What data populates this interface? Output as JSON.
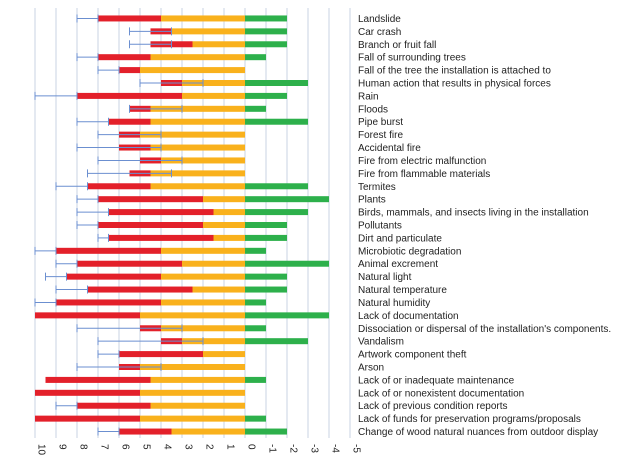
{
  "chart_data": {
    "type": "bar",
    "orientation": "horizontal-diverging",
    "xlim": [
      10,
      -5
    ],
    "x_ticks": [
      "10",
      "9",
      "8",
      "7",
      "6",
      "5",
      "4",
      "3",
      "2",
      "1",
      "0",
      "-1",
      "-2",
      "-3",
      "-4",
      "-5"
    ],
    "grid": "vertical",
    "legend": "none",
    "colors": {
      "red": "#e3202a",
      "orange": "#f9b11c",
      "green": "#2db04b",
      "error": "#6b8fd0"
    },
    "series_order": [
      "red",
      "orange",
      "green"
    ],
    "categories": [
      "Landslide",
      "Car crash",
      "Branch or fruit fall",
      "Fall of surrounding trees",
      "Fall of the tree the installation is attached to",
      "Human action that results in physical forces",
      "Rain",
      "Floods",
      "Pipe burst",
      "Forest fire",
      "Accidental fire",
      "Fire from electric malfunction",
      "Fire from flammable materials",
      "Termites",
      "Plants",
      "Birds, mammals, and insects living in the installation",
      "Pollutants",
      "Dirt and particulate",
      "Microbiotic degradation",
      "Animal excrement",
      "Natural light",
      "Natural temperature",
      "Natural humidity",
      "Lack of documentation",
      "Dissociation or dispersal of the installation's components.",
      "Vandalism",
      "Artwork component theft",
      "Arson",
      "Lack of or inadequate maintenance",
      "Lack of or nonexistent documentation",
      "Lack of previous condition reports",
      "Lack of funds for preservation programs/proposals",
      "Change of wood natural nuances from outdoor display"
    ],
    "bars": [
      {
        "red": 3.0,
        "orange": 4.0,
        "green": 2.0,
        "err_low": 8.0,
        "err_high": 7.0
      },
      {
        "red": 1.0,
        "orange": 3.5,
        "green": 2.0,
        "err_low": 5.5,
        "err_high": 3.5
      },
      {
        "red": 2.0,
        "orange": 2.5,
        "green": 2.0,
        "err_low": 5.5,
        "err_high": 3.5
      },
      {
        "red": 2.5,
        "orange": 4.5,
        "green": 1.0,
        "err_low": 8.0,
        "err_high": 7.0
      },
      {
        "red": 1.0,
        "orange": 5.0,
        "green": 0.0,
        "err_low": 7.0,
        "err_high": 6.0
      },
      {
        "red": 1.0,
        "orange": 3.0,
        "green": 3.0,
        "err_low": 5.0,
        "err_high": 2.0
      },
      {
        "red": 5.0,
        "orange": 3.0,
        "green": 2.0,
        "err_low": 10.0,
        "err_high": 8.0
      },
      {
        "red": 1.0,
        "orange": 4.5,
        "green": 1.0,
        "err_low": 5.5,
        "err_high": 3.0
      },
      {
        "red": 2.0,
        "orange": 4.5,
        "green": 3.0,
        "err_low": 8.0,
        "err_high": 6.5
      },
      {
        "red": 1.0,
        "orange": 5.0,
        "green": 0.0,
        "err_low": 7.0,
        "err_high": 4.0
      },
      {
        "red": 1.5,
        "orange": 4.5,
        "green": 0.0,
        "err_low": 8.0,
        "err_high": 4.0
      },
      {
        "red": 1.0,
        "orange": 4.0,
        "green": 0.0,
        "err_low": 7.0,
        "err_high": 3.0
      },
      {
        "red": 1.0,
        "orange": 4.5,
        "green": 0.0,
        "err_low": 7.5,
        "err_high": 3.5
      },
      {
        "red": 3.0,
        "orange": 4.5,
        "green": 3.0,
        "err_low": 9.0,
        "err_high": 7.5
      },
      {
        "red": 5.0,
        "orange": 2.0,
        "green": 4.0,
        "err_low": 8.0,
        "err_high": 7.0
      },
      {
        "red": 5.0,
        "orange": 1.5,
        "green": 3.0,
        "err_low": 8.0,
        "err_high": 6.5
      },
      {
        "red": 5.0,
        "orange": 2.0,
        "green": 2.0,
        "err_low": 8.0,
        "err_high": 7.0
      },
      {
        "red": 5.0,
        "orange": 1.5,
        "green": 2.0,
        "err_low": 7.0,
        "err_high": 6.5
      },
      {
        "red": 5.0,
        "orange": 4.0,
        "green": 1.0,
        "err_low": 10.0,
        "err_high": 9.0
      },
      {
        "red": 5.0,
        "orange": 3.0,
        "green": 4.0,
        "err_low": 9.0,
        "err_high": 8.0
      },
      {
        "red": 4.5,
        "orange": 4.0,
        "green": 2.0,
        "err_low": 9.5,
        "err_high": 8.5
      },
      {
        "red": 5.0,
        "orange": 2.5,
        "green": 2.0,
        "err_low": 9.0,
        "err_high": 7.5
      },
      {
        "red": 5.0,
        "orange": 4.0,
        "green": 1.0,
        "err_low": 10.0,
        "err_high": 9.0
      },
      {
        "red": 5.0,
        "orange": 5.0,
        "green": 4.0,
        "err_low": 10.0,
        "err_high": 10.0
      },
      {
        "red": 1.0,
        "orange": 4.0,
        "green": 1.0,
        "err_low": 8.0,
        "err_high": 3.0
      },
      {
        "red": 1.0,
        "orange": 3.0,
        "green": 3.0,
        "err_low": 7.0,
        "err_high": 2.0
      },
      {
        "red": 4.0,
        "orange": 2.0,
        "green": 0.0,
        "err_low": 7.0,
        "err_high": 6.0
      },
      {
        "red": 1.0,
        "orange": 5.0,
        "green": 0.0,
        "err_low": 8.0,
        "err_high": 4.0
      },
      {
        "red": 5.0,
        "orange": 4.5,
        "green": 1.0,
        "err_low": 9.5,
        "err_high": 9.5
      },
      {
        "red": 5.0,
        "orange": 5.0,
        "green": 0.0,
        "err_low": 10.0,
        "err_high": 10.0
      },
      {
        "red": 3.5,
        "orange": 4.5,
        "green": 0.0,
        "err_low": 9.0,
        "err_high": 8.0
      },
      {
        "red": 5.0,
        "orange": 5.0,
        "green": 1.0,
        "err_low": 10.0,
        "err_high": 10.0
      },
      {
        "red": 2.5,
        "orange": 3.5,
        "green": 2.0,
        "err_low": 7.0,
        "err_high": 6.0
      }
    ]
  }
}
